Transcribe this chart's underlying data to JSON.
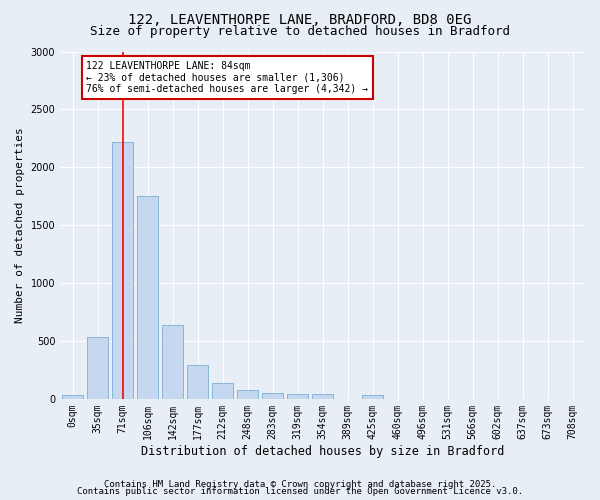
{
  "title_line1": "122, LEAVENTHORPE LANE, BRADFORD, BD8 0EG",
  "title_line2": "Size of property relative to detached houses in Bradford",
  "xlabel": "Distribution of detached houses by size in Bradford",
  "ylabel": "Number of detached properties",
  "categories": [
    "0sqm",
    "35sqm",
    "71sqm",
    "106sqm",
    "142sqm",
    "177sqm",
    "212sqm",
    "248sqm",
    "283sqm",
    "319sqm",
    "354sqm",
    "389sqm",
    "425sqm",
    "460sqm",
    "496sqm",
    "531sqm",
    "566sqm",
    "602sqm",
    "637sqm",
    "673sqm",
    "708sqm"
  ],
  "values": [
    30,
    530,
    2220,
    1750,
    640,
    290,
    140,
    75,
    50,
    40,
    40,
    0,
    30,
    0,
    0,
    0,
    0,
    0,
    0,
    0,
    0
  ],
  "bar_color": "#c5d8f0",
  "bar_edge_color": "#7bafd4",
  "red_line_x": 2,
  "annotation_title": "122 LEAVENTHORPE LANE: 84sqm",
  "annotation_line2": "← 23% of detached houses are smaller (1,306)",
  "annotation_line3": "76% of semi-detached houses are larger (4,342) →",
  "annotation_box_color": "#ffffff",
  "annotation_box_edge": "#cc0000",
  "ylim": [
    0,
    3000
  ],
  "yticks": [
    0,
    500,
    1000,
    1500,
    2000,
    2500,
    3000
  ],
  "footer_line1": "Contains HM Land Registry data © Crown copyright and database right 2025.",
  "footer_line2": "Contains public sector information licensed under the Open Government Licence v3.0.",
  "bg_color": "#e8eef6",
  "plot_bg_color": "#e8eef6",
  "grid_color": "#ffffff",
  "title_fontsize": 10,
  "subtitle_fontsize": 9,
  "axis_label_fontsize": 8,
  "tick_fontsize": 7,
  "annotation_fontsize": 7,
  "footer_fontsize": 6.5
}
